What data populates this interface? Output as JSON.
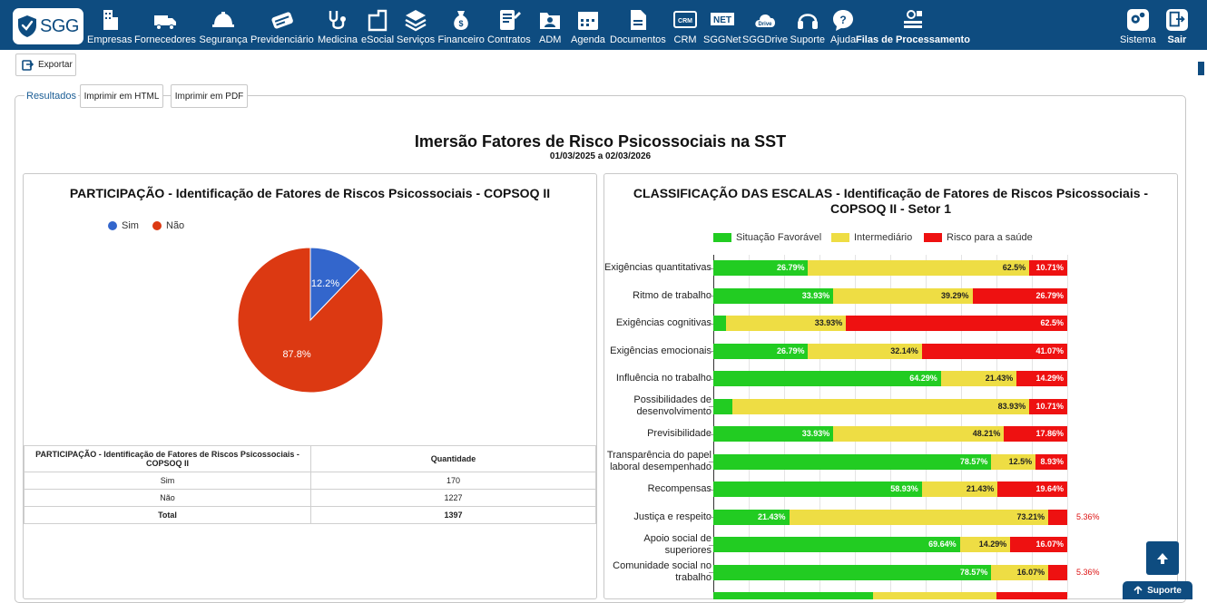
{
  "app": {
    "logo_text": "SGG"
  },
  "nav": {
    "items": [
      {
        "label": "Empresas",
        "icon": "buildings-icon"
      },
      {
        "label": "Fornecedores",
        "icon": "truck-icon"
      },
      {
        "label": "Segurança",
        "icon": "hard-hat-icon"
      },
      {
        "label": "Previdenciário",
        "icon": "card-icon"
      },
      {
        "label": "Medicina",
        "icon": "stethoscope-icon"
      },
      {
        "label": "eSocial",
        "icon": "esocial-icon"
      },
      {
        "label": "Serviços",
        "icon": "layers-icon"
      },
      {
        "label": "Financeiro",
        "icon": "money-bag-icon"
      },
      {
        "label": "Contratos",
        "icon": "contract-icon"
      },
      {
        "label": "ADM",
        "icon": "folder-user-icon"
      },
      {
        "label": "Agenda",
        "icon": "calendar-icon"
      },
      {
        "label": "Documentos",
        "icon": "document-icon"
      },
      {
        "label": "CRM",
        "icon": "crm-icon"
      },
      {
        "label": "SGGNet",
        "icon": "net-icon"
      },
      {
        "label": "SGGDrive",
        "icon": "cloud-drive-icon"
      },
      {
        "label": "Suporte",
        "icon": "headset-icon"
      },
      {
        "label": "Ajuda",
        "icon": "help-bubble-icon"
      },
      {
        "label": "Filas de Processamento",
        "icon": "processing-queue-icon"
      }
    ],
    "right": [
      {
        "label": "Sistema",
        "icon": "gears-icon"
      },
      {
        "label": "Sair",
        "icon": "exit-icon"
      }
    ]
  },
  "toolbar": {
    "export_label": "Exportar"
  },
  "tabs": {
    "results_label": "Resultados",
    "print_html_label": "Imprimir em HTML",
    "print_pdf_label": "Imprimir em PDF"
  },
  "report": {
    "title": "Imersão Fatores de Risco Psicossociais na SST",
    "period": "01/03/2025 a 02/03/2026"
  },
  "participation": {
    "title": "PARTICIPAÇÃO - Identificação de Fatores de Riscos Psicossociais - COPSOQ II",
    "table_header_1": "PARTICIPAÇÃO - Identificação de Fatores de Riscos Psicossociais - COPSOQ II",
    "table_header_2": "Quantidade",
    "rows": [
      {
        "label": "Sim",
        "value": "170"
      },
      {
        "label": "Não",
        "value": "1227"
      }
    ],
    "total_label": "Total",
    "total_value": "1397"
  },
  "classification": {
    "title": "CLASSIFICAÇÃO DAS ESCALAS - Identificação de Fatores de Riscos Psicossociais - COPSOQ II - Setor 1"
  },
  "chart_data": [
    {
      "type": "pie",
      "title": "PARTICIPAÇÃO - Identificação de Fatores de Riscos Psicossociais - COPSOQ II",
      "legend_position": "top-left",
      "slices": [
        {
          "name": "Sim",
          "value": 12.2,
          "label": "12.2%",
          "color": "#3366cc"
        },
        {
          "name": "Não",
          "value": 87.8,
          "label": "87.8%",
          "color": "#dc3912"
        }
      ]
    },
    {
      "type": "bar",
      "orientation": "horizontal",
      "stacked": true,
      "legend_position": "top",
      "xlim": [
        0,
        100
      ],
      "categories": [
        "Exigências quantitativas",
        "Ritmo de trabalho",
        "Exigências cognitivas",
        "Exigências emocionais",
        "Influência no trabalho",
        "Possibilidades de desenvolvimento",
        "Previsibilidade",
        "Transparência do papel laboral desempenhado",
        "Recompensas",
        "Justiça e respeito",
        "Apoio social de superiores",
        "Comunidade social no trabalho"
      ],
      "series": [
        {
          "name": "Situação Favorável",
          "color": "#22cc22",
          "values": [
            26.79,
            33.93,
            3.57,
            26.79,
            64.29,
            5.36,
            33.93,
            78.57,
            58.93,
            21.43,
            69.64,
            78.57
          ],
          "labels": [
            "26.79%",
            "33.93%",
            "3.57%",
            "26.79%",
            "64.29%",
            "5.36%",
            "33.93%",
            "78.57%",
            "58.93%",
            "21.43%",
            "69.64%",
            "78.57%"
          ]
        },
        {
          "name": "Intermediário",
          "color": "#eedd44",
          "values": [
            62.5,
            39.29,
            33.93,
            32.14,
            21.43,
            83.93,
            48.21,
            12.5,
            21.43,
            73.21,
            14.29,
            16.07
          ],
          "labels": [
            "62.5%",
            "39.29%",
            "33.93%",
            "32.14%",
            "21.43%",
            "83.93%",
            "48.21%",
            "12.5%",
            "21.43%",
            "73.21%",
            "14.29%",
            "16.07%"
          ]
        },
        {
          "name": "Risco para a saúde",
          "color": "#ee1111",
          "values": [
            10.71,
            26.79,
            62.5,
            41.07,
            14.29,
            10.71,
            17.86,
            8.93,
            19.64,
            5.36,
            16.07,
            5.36
          ],
          "labels": [
            "10.71%",
            "26.79%",
            "62.5%",
            "41.07%",
            "14.29%",
            "10.71%",
            "17.86%",
            "8.93%",
            "19.64%",
            "5.36%",
            "16.07%",
            "5.36%"
          ]
        }
      ]
    }
  ],
  "floating": {
    "support_label": "Suporte"
  }
}
